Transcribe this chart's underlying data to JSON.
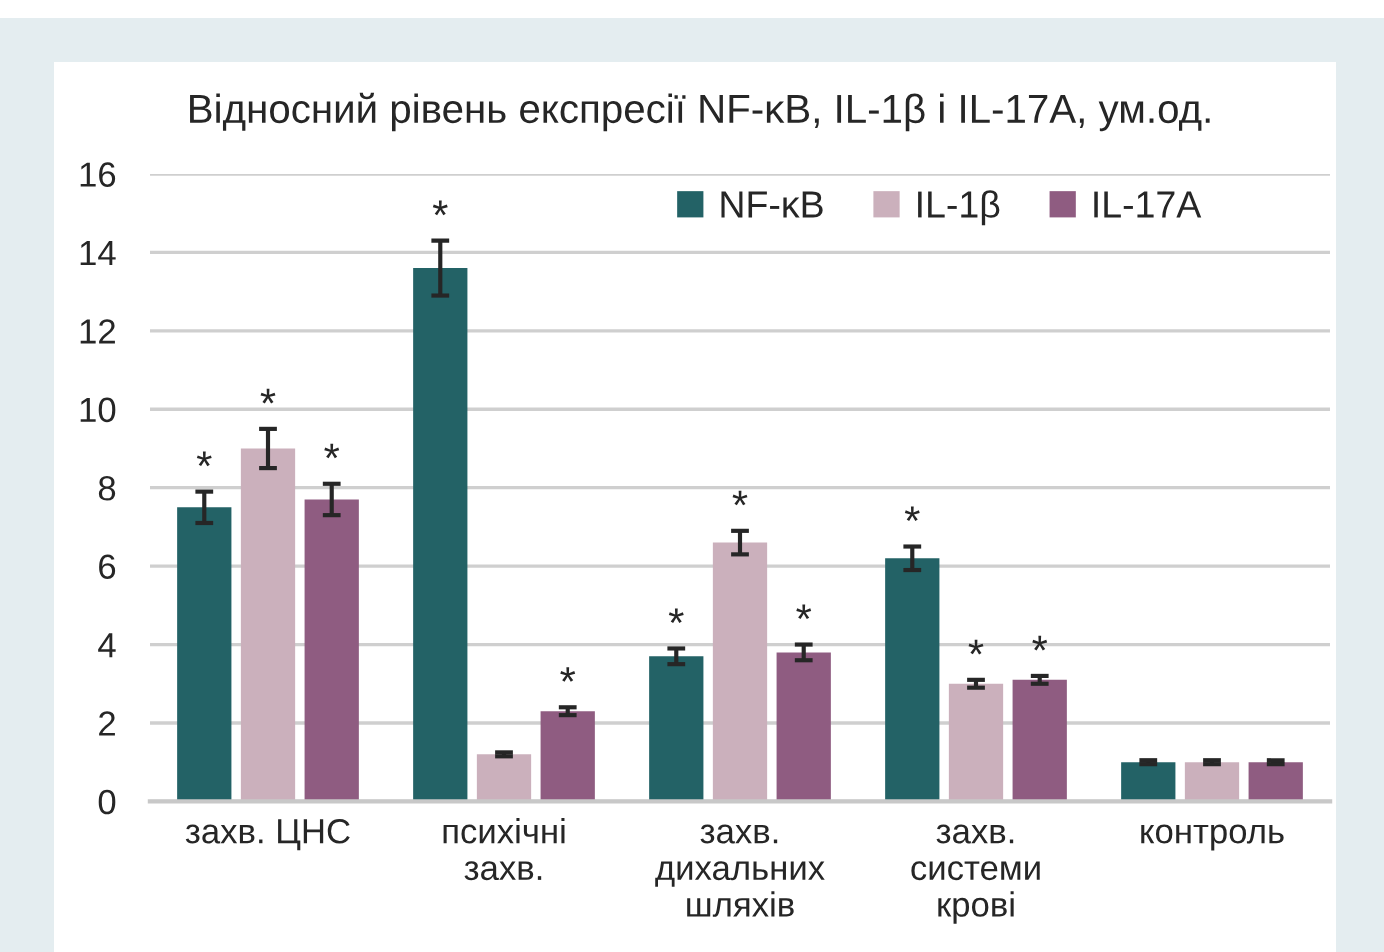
{
  "chart_data": {
    "type": "bar",
    "title": "Відносний рівень експресії NF-κB, IL-1β і IL-17A, ум.од.",
    "categories": [
      "захв. ЦНС",
      "психічні\nзахв.",
      "захв.\nдихальних\nшляхів",
      "захв.\nсистеми\nкрові",
      "контроль"
    ],
    "series": [
      {
        "name": "NF-κB",
        "color": "#236266",
        "values": [
          7.5,
          13.6,
          3.7,
          6.2,
          1.0
        ],
        "errors": [
          0.4,
          0.7,
          0.2,
          0.3,
          0.05
        ],
        "value_labels": [
          "*",
          "*",
          "*",
          "*",
          null
        ]
      },
      {
        "name": "IL-1β",
        "color": "#cbb0bc",
        "values": [
          9.0,
          1.2,
          6.6,
          3.0,
          1.0
        ],
        "errors": [
          0.5,
          0.05,
          0.3,
          0.1,
          0.05
        ],
        "value_labels": [
          "*",
          null,
          "*",
          "*",
          null
        ]
      },
      {
        "name": "IL-17A",
        "color": "#8f5c81",
        "values": [
          7.7,
          2.3,
          3.8,
          3.1,
          1.0
        ],
        "errors": [
          0.4,
          0.1,
          0.2,
          0.1,
          0.05
        ],
        "value_labels": [
          "*",
          "*",
          "*",
          "*",
          null
        ]
      }
    ],
    "ylim": [
      0,
      16
    ],
    "yticks": [
      0,
      2,
      4,
      6,
      8,
      10,
      12,
      14,
      16
    ],
    "grid": "y",
    "legend": "top right"
  }
}
